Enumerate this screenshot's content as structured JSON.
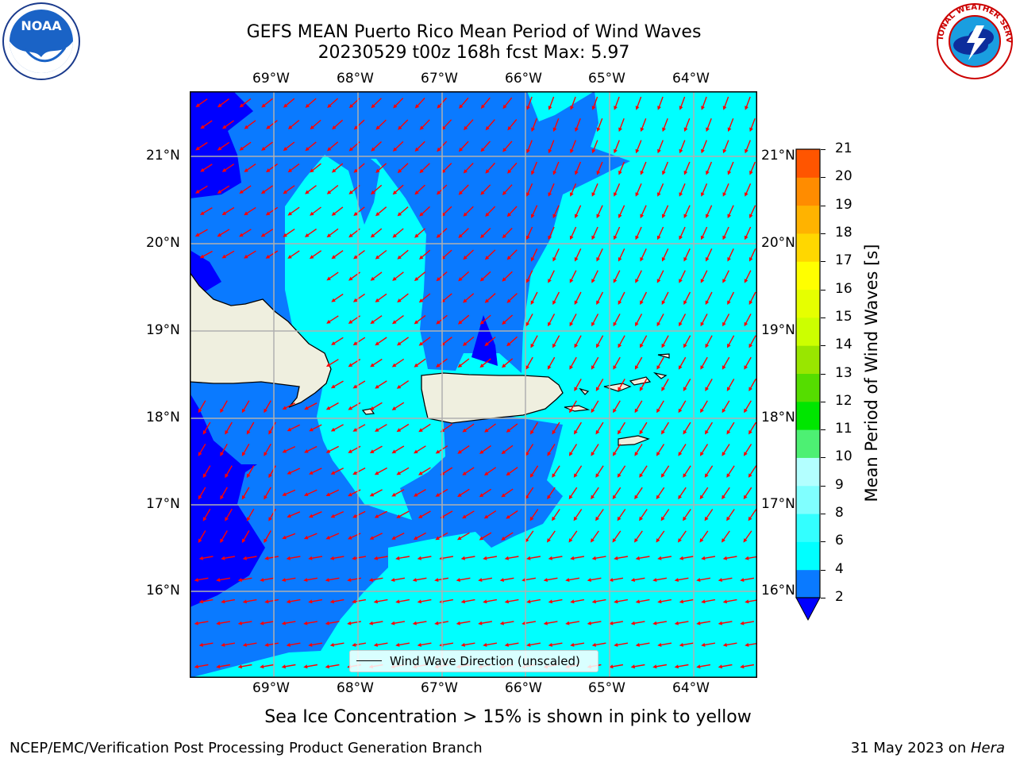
{
  "title_line1": "GEFS MEAN Puerto Rico Mean Period of Wind Waves",
  "title_line2": "20230529 t00z 168h fcst   Max: 5.97",
  "logos": {
    "left": "noaa-logo",
    "right": "national-weather-service-logo",
    "left_text": "NOAA",
    "right_text": "NATIONAL WEATHER SERVICE"
  },
  "lon_labels": [
    "69°W",
    "68°W",
    "67°W",
    "66°W",
    "65°W",
    "64°W"
  ],
  "lat_labels": [
    "21°N",
    "20°N",
    "19°N",
    "18°N",
    "17°N",
    "16°N"
  ],
  "colorbar": {
    "label": "Mean Period of Wind Waves [s]",
    "ticks": [
      "2",
      "4",
      "6",
      "8",
      "9",
      "10",
      "11",
      "12",
      "13",
      "14",
      "15",
      "16",
      "17",
      "18",
      "19",
      "20",
      "21"
    ],
    "colors": [
      "#0a7aff",
      "#00ffff",
      "#33ffff",
      "#80ffff",
      "#b3ffff",
      "#4df073",
      "#00e600",
      "#55dd00",
      "#99e600",
      "#ccff00",
      "#e6ff00",
      "#ffff00",
      "#ffd700",
      "#ffb300",
      "#ff8c00",
      "#ff5500",
      "#ff2200",
      "#ff0000"
    ],
    "extend_color": "#0000ff"
  },
  "legend_label": "Wind Wave Direction (unscaled)",
  "caption": "Sea Ice Concentration > 15% is shown in pink to yellow",
  "footer_left": "NCEP/EMC/Verification Post Processing Product Generation Branch",
  "footer_date": "31 May 2023 on ",
  "footer_machine": "Hera",
  "colors": {
    "land": "#efefdf",
    "arrow": "#ff0000",
    "zone_a": "#0a7aff",
    "zone_b": "#00ffff",
    "zone_c": "#0000ff"
  }
}
